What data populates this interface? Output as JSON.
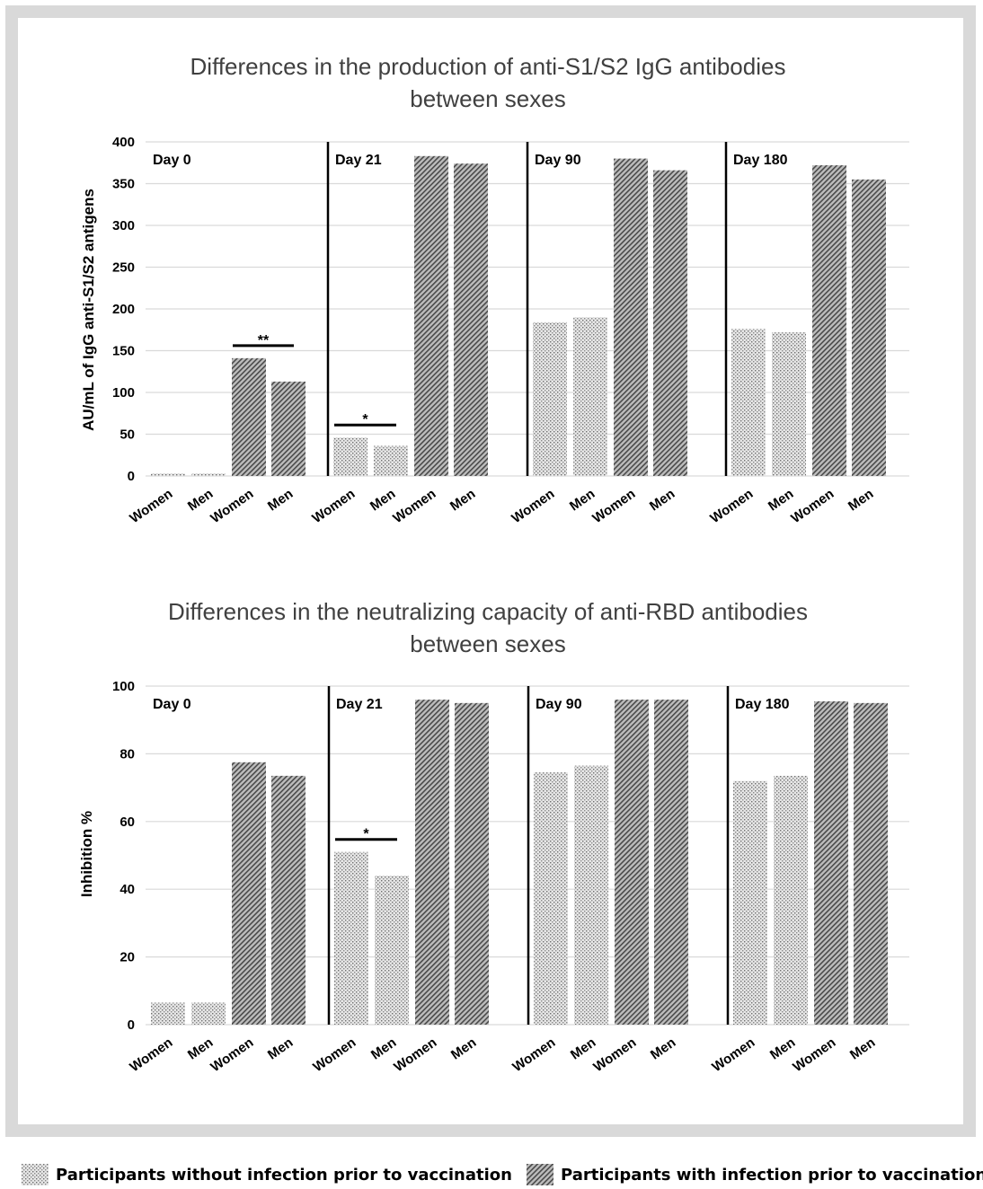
{
  "colors": {
    "frame": "#d9d9d9",
    "grid": "#d9d9d9",
    "dotted_pattern": "#7f7f7f",
    "hatched_pattern": "#595959",
    "separator": "#000000"
  },
  "legend": {
    "without_label": "Participants without infection prior to vaccination",
    "with_label": "Participants with infection prior to vaccination"
  },
  "chart_data": [
    {
      "type": "bar",
      "title": "Differences in the production of anti-S1/S2 IgG antibodies between sexes",
      "title_lines": [
        "Differences in the production of anti-S1/S2 IgG antibodies",
        "between sexes"
      ],
      "ylabel": "AU/mL of IgG anti-S1/S2 antigens",
      "ylim": [
        0,
        400
      ],
      "yticks": [
        0,
        50,
        100,
        150,
        200,
        250,
        300,
        350,
        400
      ],
      "grid": true,
      "panels": [
        {
          "label": "Day 0",
          "categories": [
            "Women",
            "Men",
            "Women",
            "Men"
          ],
          "groups": [
            "without",
            "without",
            "with",
            "with"
          ],
          "values": [
            3,
            3,
            141,
            113
          ],
          "significance": [
            {
              "between": [
                2,
                3
              ],
              "label": "**"
            }
          ]
        },
        {
          "label": "Day 21",
          "categories": [
            "Women",
            "Men",
            "Women",
            "Men"
          ],
          "groups": [
            "without",
            "without",
            "with",
            "with"
          ],
          "values": [
            46,
            36,
            383,
            374
          ],
          "significance": [
            {
              "between": [
                0,
                1
              ],
              "label": "*"
            }
          ]
        },
        {
          "label": "Day 90",
          "categories": [
            "Women",
            "Men",
            "Women",
            "Men"
          ],
          "groups": [
            "without",
            "without",
            "with",
            "with"
          ],
          "values": [
            184,
            190,
            380,
            366
          ],
          "significance": []
        },
        {
          "label": "Day 180",
          "categories": [
            "Women",
            "Men",
            "Women",
            "Men"
          ],
          "groups": [
            "without",
            "without",
            "with",
            "with"
          ],
          "values": [
            176,
            172,
            372,
            355
          ],
          "significance": []
        }
      ]
    },
    {
      "type": "bar",
      "title": "Differences in the neutralizing capacity of anti-RBD antibodies between sexes",
      "title_lines": [
        "Differences in the neutralizing capacity of anti-RBD antibodies",
        "between sexes"
      ],
      "ylabel": "Inhibition %",
      "ylim": [
        0,
        100
      ],
      "yticks": [
        0,
        20,
        40,
        60,
        80,
        100
      ],
      "grid": true,
      "panels": [
        {
          "label": "Day 0",
          "categories": [
            "Women",
            "Men",
            "Women",
            "Men"
          ],
          "groups": [
            "without",
            "without",
            "with",
            "with"
          ],
          "values": [
            6.5,
            6.5,
            77.5,
            73.5
          ],
          "significance": []
        },
        {
          "label": "Day 21",
          "categories": [
            "Women",
            "Men",
            "Women",
            "Men"
          ],
          "groups": [
            "without",
            "without",
            "with",
            "with"
          ],
          "values": [
            51,
            44,
            96,
            95
          ],
          "significance": [
            {
              "between": [
                0,
                1
              ],
              "label": "*"
            }
          ]
        },
        {
          "label": "Day 90",
          "categories": [
            "Women",
            "Men",
            "Women",
            "Men"
          ],
          "groups": [
            "without",
            "without",
            "with",
            "with"
          ],
          "values": [
            74.5,
            76.5,
            96,
            96
          ],
          "significance": []
        },
        {
          "label": "Day 180",
          "categories": [
            "Women",
            "Men",
            "Women",
            "Men"
          ],
          "groups": [
            "without",
            "without",
            "with",
            "with"
          ],
          "values": [
            72,
            73.5,
            95.5,
            95
          ],
          "significance": []
        }
      ]
    }
  ]
}
